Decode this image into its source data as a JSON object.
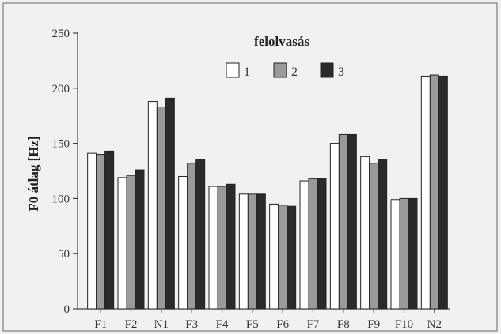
{
  "chart_data": {
    "type": "bar",
    "ylabel": "F0 átlag [Hz]",
    "xlabel": "",
    "ylim": [
      0,
      250
    ],
    "yticks": [
      0,
      50,
      100,
      150,
      200,
      250
    ],
    "grid": false,
    "legend_position": "top-right",
    "legend_title": "felolvasás",
    "categories": [
      "F1",
      "F2",
      "N1",
      "F3",
      "F4",
      "F5",
      "F6",
      "F7",
      "F8",
      "F9",
      "F10",
      "N2"
    ],
    "series": [
      {
        "name": "1",
        "color": "#ffffff",
        "values": [
          141,
          119,
          188,
          120,
          111,
          104,
          95,
          116,
          150,
          138,
          99,
          211
        ]
      },
      {
        "name": "2",
        "color": "#9a9a9a",
        "values": [
          140,
          121,
          183,
          132,
          111,
          104,
          94,
          118,
          158,
          132,
          100,
          212
        ]
      },
      {
        "name": "3",
        "color": "#2a2a2a",
        "values": [
          143,
          126,
          191,
          135,
          113,
          104,
          93,
          118,
          158,
          135,
          100,
          211
        ]
      }
    ]
  }
}
